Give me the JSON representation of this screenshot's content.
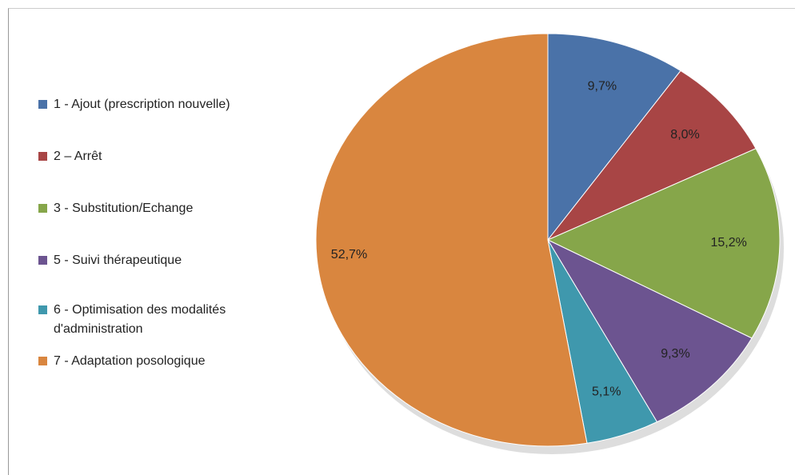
{
  "chart_data": {
    "type": "pie",
    "categories": [
      "1 - Ajout (prescription nouvelle)",
      "2 – Arrêt",
      "3 - Substitution/Echange",
      "5 - Suivi thérapeutique",
      "6 - Optimisation des modalités d'administration",
      "7 - Adaptation posologique"
    ],
    "values": [
      9.7,
      8.0,
      15.2,
      9.3,
      5.1,
      52.7
    ],
    "value_labels": [
      "9,7%",
      "8,0%",
      "15,2%",
      "9,3%",
      "5,1%",
      "52,7%"
    ],
    "colors": [
      "#4a72a8",
      "#a84545",
      "#86a64a",
      "#6c5490",
      "#3f98ad",
      "#d9863f"
    ],
    "legend": "left"
  }
}
